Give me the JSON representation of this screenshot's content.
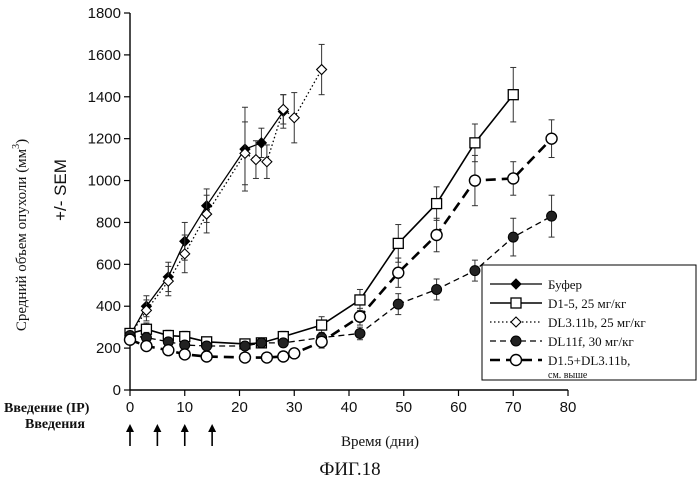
{
  "figure_caption": "ФИГ.18",
  "admin_labels": {
    "line1": "Введение (IP)",
    "line2": "Введения"
  },
  "admin_days": [
    0,
    5,
    10,
    15
  ],
  "chart_data": {
    "type": "line",
    "title": "",
    "xlabel": "Время (дни)",
    "ylabel_line1": "Средний объем опухоли (мм",
    "ylabel_sup": "3",
    "ylabel_close": ")",
    "ylabel_line2": "+/- SEM",
    "xlim": [
      0,
      80
    ],
    "ylim": [
      0,
      1800
    ],
    "x_ticks": [
      0,
      10,
      20,
      30,
      40,
      50,
      60,
      70,
      80
    ],
    "y_ticks": [
      0,
      200,
      400,
      600,
      800,
      1000,
      1200,
      1400,
      1600,
      1800
    ],
    "legend_position": "bottom-right",
    "series": [
      {
        "name": "Буфер",
        "style": "solid-thin",
        "marker": "diamond-filled",
        "color": "#000000",
        "x": [
          0,
          3,
          7,
          10,
          14,
          21,
          24,
          28
        ],
        "y": [
          260,
          400,
          540,
          710,
          880,
          1150,
          1180,
          1330
        ],
        "err": [
          20,
          50,
          70,
          90,
          80,
          200,
          70,
          80
        ]
      },
      {
        "name": "D1-5, 25 мг/кг",
        "style": "solid",
        "marker": "square-open",
        "color": "#000000",
        "x": [
          0,
          3,
          7,
          10,
          14,
          21,
          24,
          28,
          35,
          42,
          49,
          56,
          63,
          70
        ],
        "y": [
          270,
          290,
          260,
          255,
          230,
          220,
          225,
          255,
          310,
          430,
          700,
          890,
          1180,
          1410
        ],
        "err": [
          20,
          30,
          25,
          25,
          20,
          20,
          20,
          25,
          40,
          50,
          90,
          80,
          90,
          130
        ]
      },
      {
        "name": "DL3.11b, 25 мг/кг",
        "style": "dotted",
        "marker": "diamond-open",
        "color": "#000000",
        "x": [
          0,
          3,
          7,
          10,
          14,
          21,
          23,
          25,
          28,
          30,
          35
        ],
        "y": [
          260,
          380,
          520,
          650,
          840,
          1130,
          1100,
          1090,
          1340,
          1300,
          1530
        ],
        "err": [
          20,
          50,
          70,
          90,
          90,
          150,
          90,
          80,
          70,
          120,
          120
        ]
      },
      {
        "name": "DL11f, 30 мг/кг",
        "style": "dashed-thin",
        "marker": "circle-filled",
        "color": "#000000",
        "x": [
          0,
          3,
          7,
          10,
          14,
          21,
          24,
          28,
          35,
          42,
          49,
          56,
          63,
          70,
          77
        ],
        "y": [
          260,
          250,
          230,
          215,
          210,
          210,
          225,
          225,
          250,
          270,
          410,
          480,
          570,
          730,
          830
        ],
        "err": [
          20,
          25,
          20,
          20,
          20,
          20,
          20,
          20,
          25,
          30,
          50,
          50,
          50,
          90,
          100
        ]
      },
      {
        "name": "D1.5+DL3.11b,",
        "name_line2": "см. выше",
        "style": "dashed-thick",
        "marker": "circle-open",
        "color": "#000000",
        "x": [
          0,
          3,
          7,
          10,
          14,
          21,
          25,
          28,
          30,
          35,
          42,
          49,
          56,
          63,
          70,
          77
        ],
        "y": [
          240,
          210,
          190,
          170,
          160,
          155,
          155,
          160,
          175,
          230,
          350,
          560,
          740,
          1000,
          1010,
          1200
        ],
        "err": [
          20,
          20,
          20,
          15,
          15,
          15,
          15,
          15,
          20,
          30,
          40,
          70,
          80,
          120,
          80,
          90
        ]
      }
    ]
  }
}
